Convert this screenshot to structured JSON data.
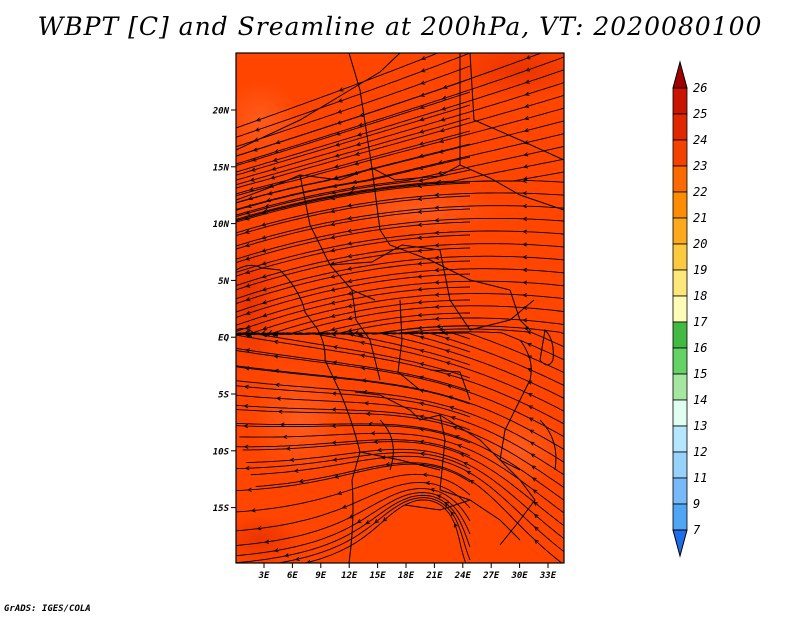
{
  "title": "WBPT [C] and Sreamline at 200hPa, VT: 2020080100",
  "credit": "GrADS: IGES/COLA",
  "map": {
    "lat_labels": [
      "20N",
      "15N",
      "10N",
      "5N",
      "EQ",
      "5S",
      "10S",
      "15S"
    ],
    "lon_labels": [
      "3E",
      "6E",
      "9E",
      "12E",
      "15E",
      "18E",
      "21E",
      "24E",
      "27E",
      "30E",
      "33E"
    ],
    "field_color": "#ff4500",
    "warm_color": "#e32a00",
    "cool_color": "#f55a1e"
  },
  "colorbar": {
    "levels": [
      "26",
      "25",
      "24",
      "23",
      "22",
      "21",
      "20",
      "19",
      "18",
      "17",
      "16",
      "15",
      "14",
      "13",
      "12",
      "11",
      "9",
      "7"
    ],
    "colors": [
      "#a00000",
      "#c81400",
      "#e02800",
      "#f24300",
      "#fa6a00",
      "#fc8c00",
      "#fbaa1e",
      "#fdc93e",
      "#fde77a",
      "#fefcb6",
      "#42b943",
      "#64d264",
      "#a5e7a0",
      "#e1fff0",
      "#b4e6ff",
      "#96d2fa",
      "#78b9fa",
      "#50a5f5",
      "#3c96f0",
      "#1e6eeb"
    ]
  }
}
